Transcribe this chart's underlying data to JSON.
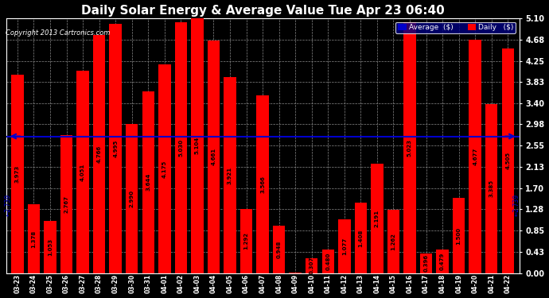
{
  "title": "Daily Solar Energy & Average Value Tue Apr 23 06:40",
  "copyright": "Copyright 2013 Cartronics.com",
  "categories": [
    "03-23",
    "03-24",
    "03-25",
    "03-26",
    "03-27",
    "03-28",
    "03-29",
    "03-30",
    "03-31",
    "04-01",
    "04-02",
    "04-03",
    "04-04",
    "04-05",
    "04-06",
    "04-07",
    "04-08",
    "04-09",
    "04-10",
    "04-11",
    "04-12",
    "04-13",
    "04-14",
    "04-15",
    "04-16",
    "04-17",
    "04-18",
    "04-19",
    "04-20",
    "04-21",
    "04-22"
  ],
  "values": [
    3.973,
    1.378,
    1.053,
    2.767,
    4.051,
    4.766,
    4.995,
    2.99,
    3.644,
    4.175,
    5.03,
    5.104,
    4.661,
    3.921,
    1.292,
    3.566,
    0.948,
    0.013,
    0.307,
    0.48,
    1.077,
    1.408,
    2.191,
    1.262,
    5.023,
    0.396,
    0.479,
    1.5,
    4.677,
    3.385,
    4.505
  ],
  "average": 2.739,
  "bar_color": "#ff0000",
  "average_line_color": "#0000cc",
  "background_color": "#000000",
  "plot_bg_color": "#000000",
  "grid_color": "#888888",
  "text_color": "#ffffff",
  "ylim": [
    0,
    5.1
  ],
  "yticks": [
    0.0,
    0.43,
    0.85,
    1.28,
    1.7,
    2.13,
    2.55,
    2.98,
    3.4,
    3.83,
    4.25,
    4.68,
    5.1
  ],
  "title_fontsize": 11,
  "avg_label": "Average  ($)",
  "daily_label": "Daily   ($)",
  "avg_legend_color": "#0000cc",
  "daily_legend_color": "#ff0000",
  "value_label_fontsize": 5,
  "ytick_fontsize": 7,
  "xtick_fontsize": 5.5
}
